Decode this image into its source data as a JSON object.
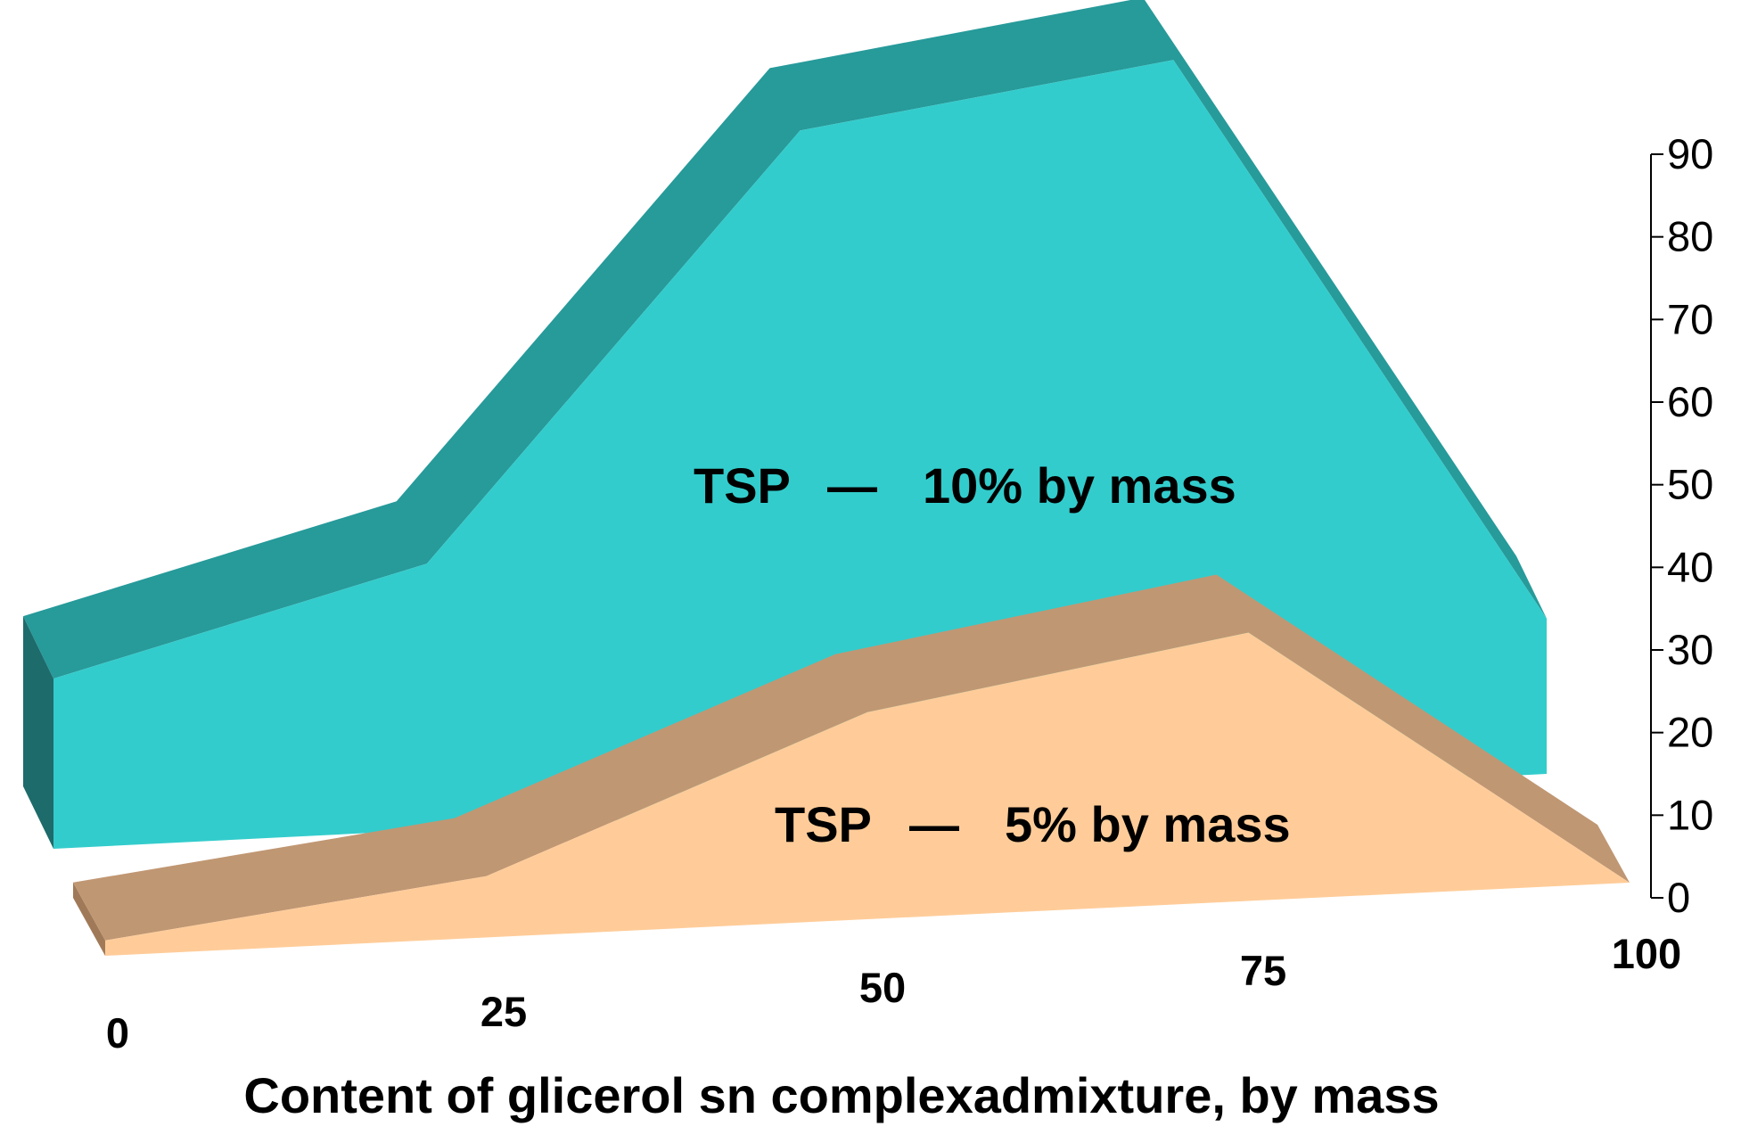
{
  "chart_data": {
    "type": "area",
    "style": "3d",
    "title": "",
    "xlabel": "Content of glicerol sn complexadmixture, by mass",
    "ylabel": "",
    "categories": [
      "0",
      "25",
      "50",
      "75",
      "100"
    ],
    "x": [
      0,
      25,
      50,
      75,
      100
    ],
    "ylim": [
      0,
      90
    ],
    "yticks": [
      0,
      10,
      20,
      30,
      40,
      50,
      60,
      70,
      80,
      90
    ],
    "ytick_labels": [
      "0",
      "10",
      "20",
      "30",
      "40",
      "50",
      "60",
      "70",
      "80",
      "90"
    ],
    "grid": false,
    "series": [
      {
        "name": "TSP — 10% by mass",
        "label_left": "TSP",
        "label_dash": "—",
        "label_right": "10% by mass",
        "values": [
          23,
          36,
          92,
          99,
          21
        ],
        "color_front": "#33cccc",
        "color_top": "#279a9a",
        "color_side": "#1e6b6b"
      },
      {
        "name": "TSP — 5% by mass",
        "label_left": "TSP",
        "label_dash": "—",
        "label_right": "5% by mass",
        "values": [
          2,
          8,
          27,
          35,
          0
        ],
        "color_front": "#ffcc99",
        "color_top": "#c09773",
        "color_side": "#a07a58"
      }
    ]
  }
}
